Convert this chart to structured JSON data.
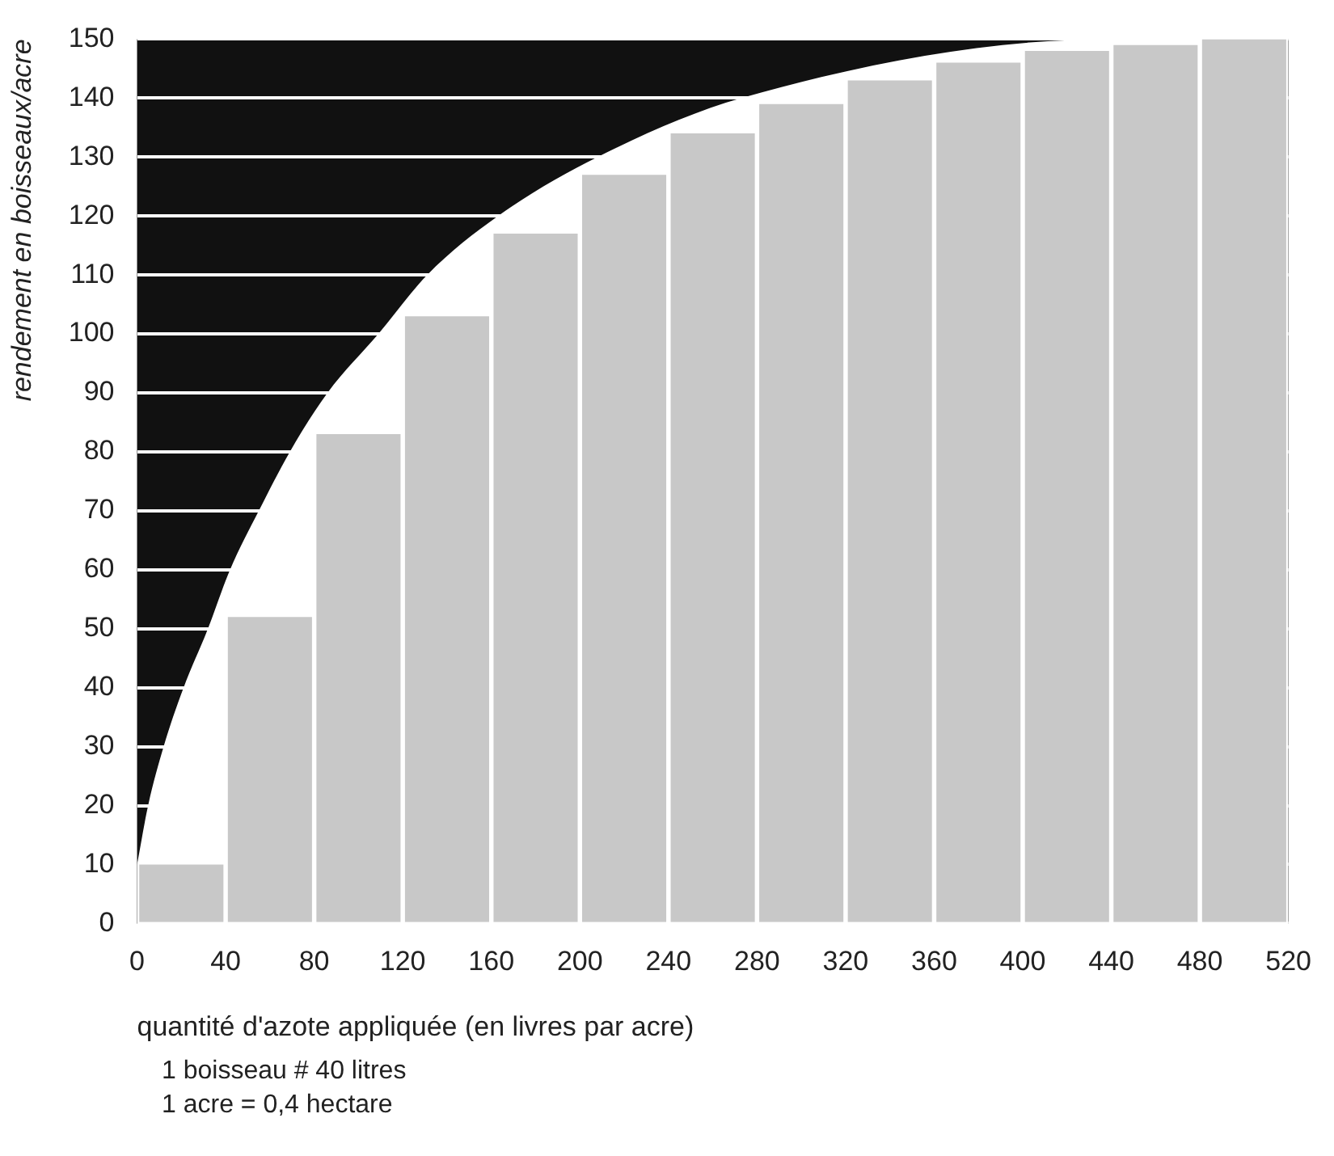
{
  "chart_data": {
    "type": "histogram",
    "xlabel": "quantité d'azote appliquée (en livres par acre)",
    "ylabel": "rendement en boisseaux/acre",
    "bins": [
      0,
      40,
      80,
      120,
      160,
      200,
      240,
      280,
      320,
      360,
      400,
      440,
      480,
      520
    ],
    "series": [
      {
        "color": "#c8c8c8",
        "values": [
          10,
          52,
          83,
          103,
          117,
          127,
          134,
          139,
          143,
          146,
          148,
          149,
          150
        ]
      },
      {
        "type": "area",
        "color": "#ffffff",
        "x": [
          0,
          5,
          12,
          21,
          32,
          42,
          55,
          69,
          86,
          109,
          131,
          163,
          208,
          273,
          440,
          520
        ],
        "values": [
          10,
          20,
          30,
          40,
          50,
          60,
          70,
          80,
          90,
          100,
          110,
          120,
          130,
          140,
          150,
          150
        ]
      }
    ],
    "xlim": [
      0,
      520
    ],
    "xticks": [
      0,
      40,
      80,
      120,
      160,
      200,
      240,
      280,
      320,
      360,
      400,
      440,
      480,
      520
    ],
    "ylim": [
      0,
      150
    ],
    "yticks": [
      0,
      10,
      20,
      30,
      40,
      50,
      60,
      70,
      80,
      90,
      100,
      110,
      120,
      130,
      140,
      150
    ],
    "grid": "y",
    "annotations": [
      "1 boisseau # 40 litres",
      "1 acre = 0,4 hectare"
    ]
  }
}
